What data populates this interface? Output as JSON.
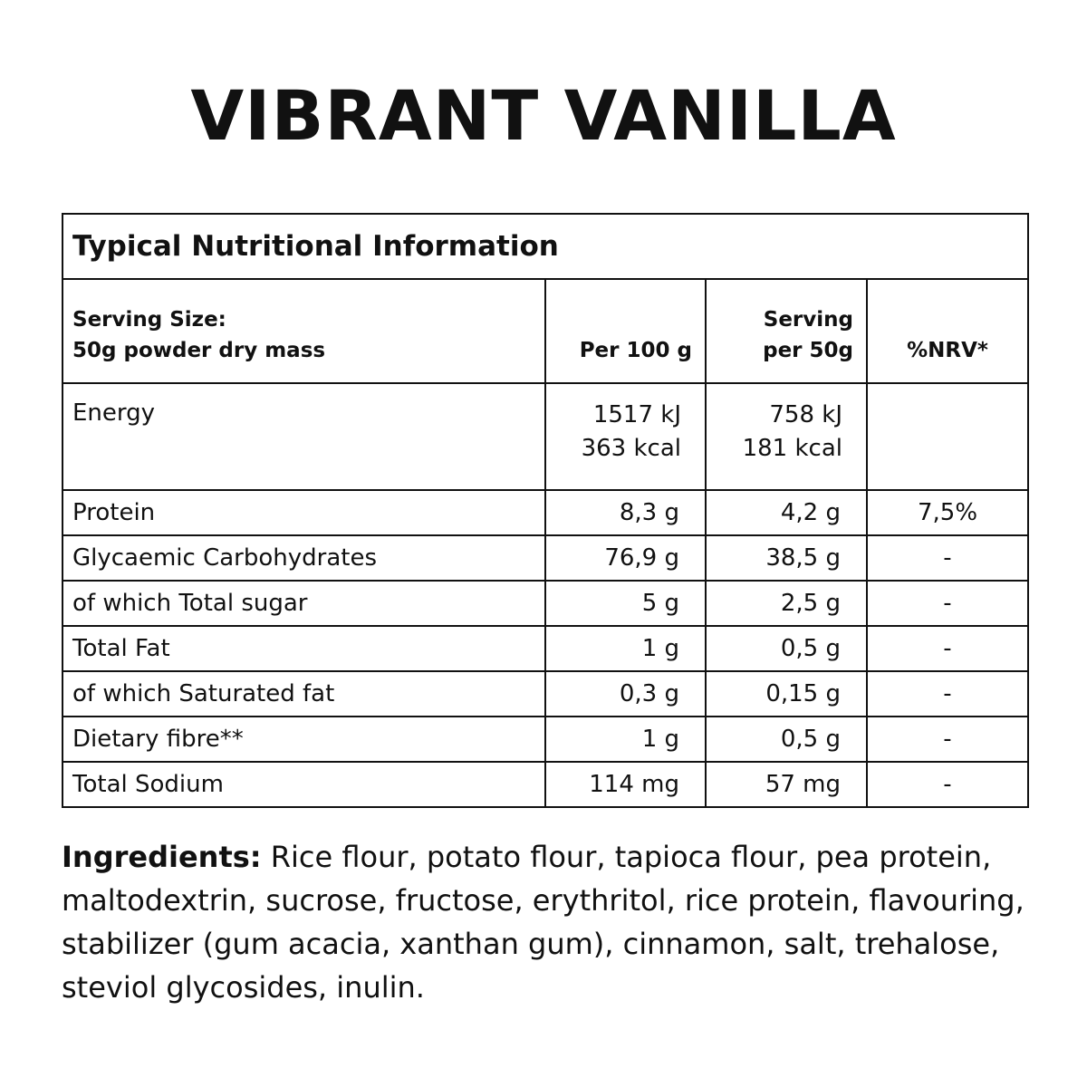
{
  "title": "VIBRANT VANILLA",
  "table": {
    "caption": "Typical Nutritional Information",
    "headers": {
      "serving_size_label": "Serving Size:",
      "serving_size_value": "50g powder dry mass",
      "per100": "Per 100 g",
      "serving_line1": "Serving",
      "serving_line2": "per 50g",
      "nrv": "%NRV*"
    },
    "energy": {
      "label": "Energy",
      "per100_kj": "1517 kJ",
      "per100_kcal": "363 kcal",
      "serving_kj": "758 kJ",
      "serving_kcal": "181 kcal",
      "nrv": ""
    },
    "rows": [
      {
        "label": "Protein",
        "per100": "8,3 g",
        "serving": "4,2 g",
        "nrv": "7,5%"
      },
      {
        "label": "Glycaemic Carbohydrates",
        "per100": "76,9 g",
        "serving": "38,5 g",
        "nrv": "-"
      },
      {
        "label": "of which Total sugar",
        "per100": "5 g",
        "serving": "2,5 g",
        "nrv": "-"
      },
      {
        "label": "Total Fat",
        "per100": "1 g",
        "serving": "0,5 g",
        "nrv": "-"
      },
      {
        "label": "of which Saturated fat",
        "per100": "0,3 g",
        "serving": "0,15 g",
        "nrv": "-"
      },
      {
        "label": "Dietary fibre**",
        "per100": "1 g",
        "serving": "0,5 g",
        "nrv": "-"
      },
      {
        "label": "Total Sodium",
        "per100": "114 mg",
        "serving": "57 mg",
        "nrv": "-"
      }
    ]
  },
  "ingredients": {
    "label": "Ingredients:",
    "text": "Rice flour, potato flour, tapioca flour, pea protein, maltodextrin, sucrose, fructose, erythritol, rice protein, flavouring, stabilizer (gum acacia, xanthan gum), cinnamon, salt, trehalose, steviol glycosides, inulin."
  }
}
